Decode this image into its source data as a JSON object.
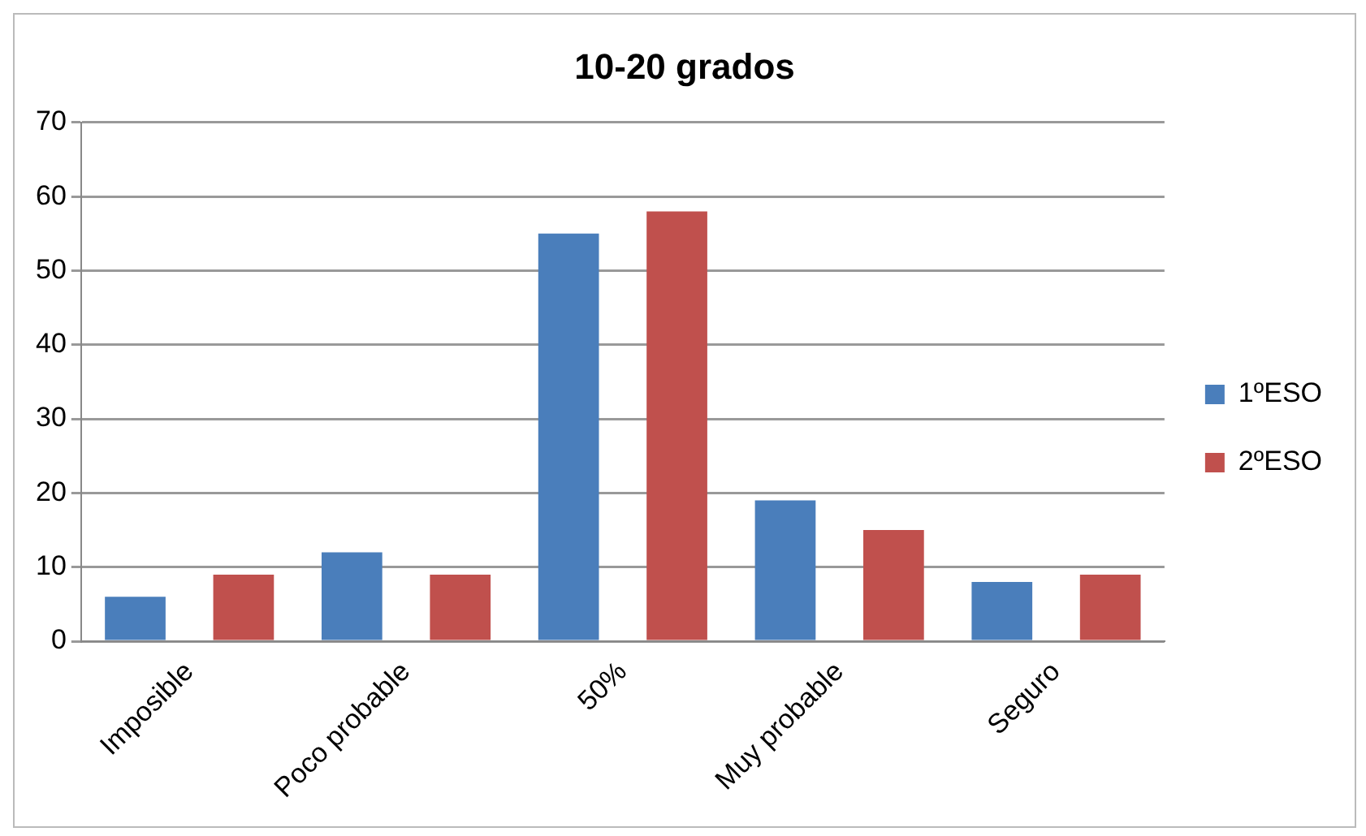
{
  "chart_data": {
    "type": "bar",
    "title": "10-20 grados",
    "categories": [
      "Imposible",
      "Poco probable",
      "50%",
      "Muy probable",
      "Seguro"
    ],
    "series": [
      {
        "name": "1ºESO",
        "color": "#4a7ebb",
        "values": [
          6,
          12,
          55,
          19,
          8
        ]
      },
      {
        "name": "2ºESO",
        "color": "#c0504d",
        "values": [
          9,
          9,
          58,
          15,
          9
        ]
      }
    ],
    "ylim": [
      0,
      70
    ],
    "yticks": [
      0,
      10,
      20,
      30,
      40,
      50,
      60,
      70
    ],
    "grid": "y",
    "legend": "right"
  }
}
